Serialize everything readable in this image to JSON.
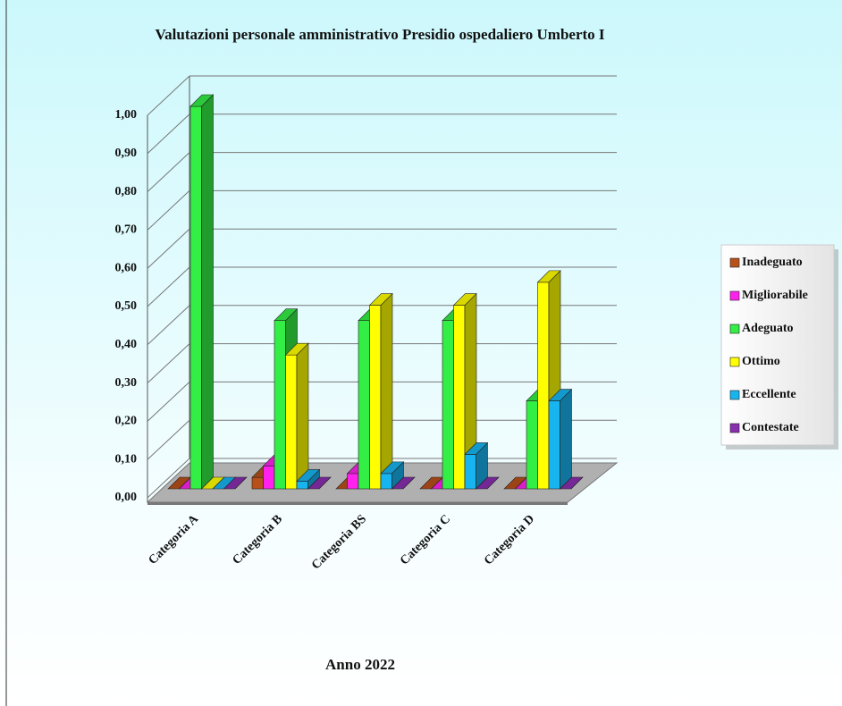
{
  "chart_data": {
    "type": "bar3d",
    "title": "Valutazioni personale amministrativo Presidio ospedaliero Umberto I",
    "xlabel": "Anno 2022",
    "categories": [
      "Categoria A",
      "Categoria B",
      "Categoria BS",
      "Categoria C",
      "Categoria D"
    ],
    "series": [
      {
        "name": "Inadeguato",
        "color": "#b8501a",
        "values": [
          0,
          0.03,
          0,
          0,
          0
        ]
      },
      {
        "name": "Migliorabile",
        "color": "#ff22ee",
        "values": [
          0,
          0.06,
          0.04,
          0,
          0
        ]
      },
      {
        "name": "Adeguato",
        "color": "#33ee44",
        "values": [
          1.0,
          0.44,
          0.44,
          0.44,
          0.23
        ]
      },
      {
        "name": "Ottimo",
        "color": "#ffff00",
        "values": [
          0,
          0.35,
          0.48,
          0.48,
          0.54
        ]
      },
      {
        "name": "Eccellente",
        "color": "#18b4f0",
        "values": [
          0,
          0.02,
          0.04,
          0.09,
          0.23
        ]
      },
      {
        "name": "Contestate",
        "color": "#8a2eb0",
        "values": [
          0,
          0,
          0,
          0,
          0
        ]
      }
    ],
    "ylim": [
      0,
      1
    ],
    "yticks": [
      {
        "value": 0,
        "label": "0,00"
      },
      {
        "value": 0.1,
        "label": "0,10"
      },
      {
        "value": 0.2,
        "label": "0,20"
      },
      {
        "value": 0.3,
        "label": "0,30"
      },
      {
        "value": 0.4,
        "label": "0,40"
      },
      {
        "value": 0.5,
        "label": "0,50"
      },
      {
        "value": 0.6,
        "label": "0,60"
      },
      {
        "value": 0.7,
        "label": "0,70"
      },
      {
        "value": 0.8,
        "label": "0,80"
      },
      {
        "value": 0.9,
        "label": "0,90"
      },
      {
        "value": 1,
        "label": "1,00"
      }
    ],
    "grid": true,
    "legend": "right"
  }
}
